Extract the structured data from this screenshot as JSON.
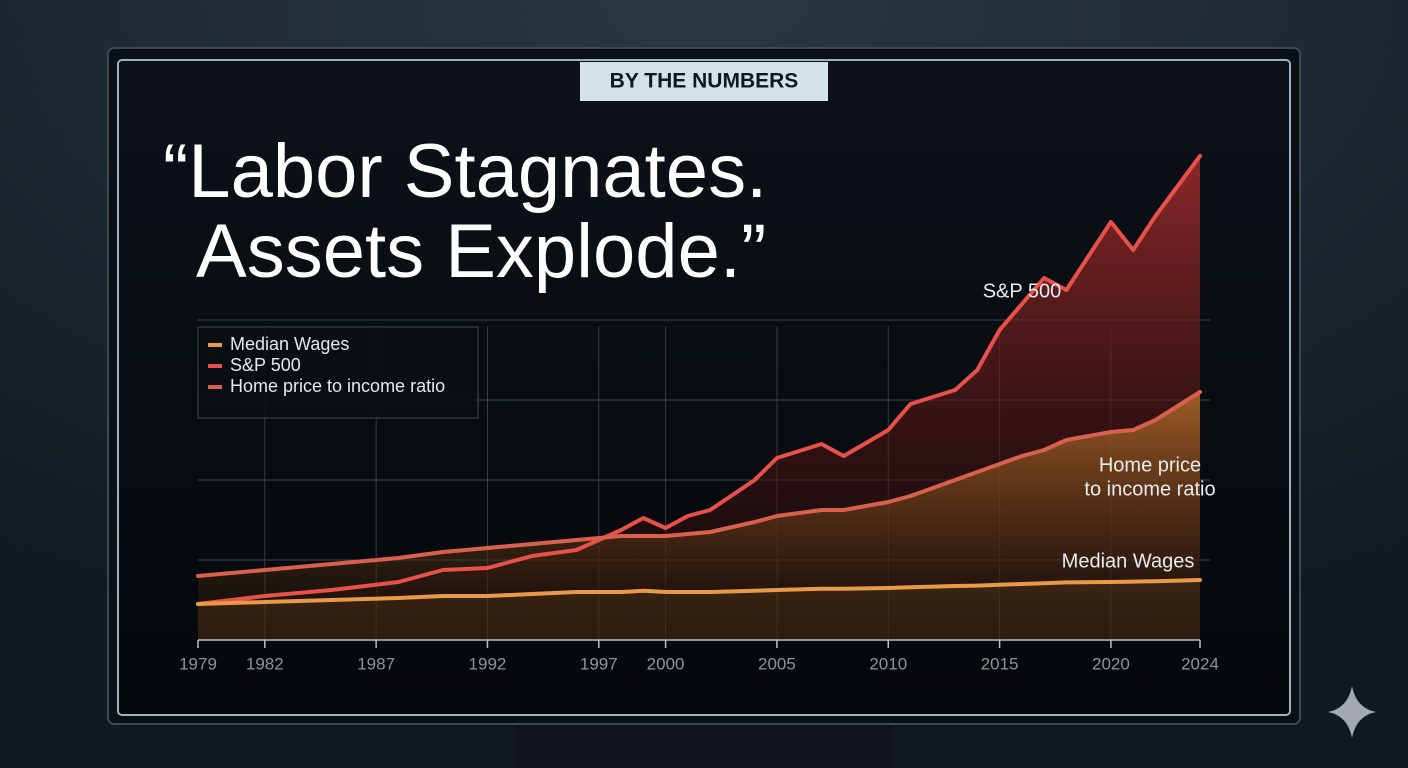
{
  "chart_data": {
    "type": "line",
    "badge": "BY THE NUMBERS",
    "title_lines": [
      "“Labor Stagnates.",
      "Assets Explode.”"
    ],
    "x": [
      1979,
      1982,
      1985,
      1988,
      1990,
      1992,
      1994,
      1996,
      1998,
      1999,
      2000,
      2001,
      2002,
      2004,
      2005,
      2007,
      2008,
      2010,
      2011,
      2013,
      2014,
      2015,
      2016,
      2017,
      2018,
      2020,
      2021,
      2022,
      2024
    ],
    "series": [
      {
        "name": "Median Wages",
        "color": "#e89a48",
        "values": [
          9,
          9.5,
          10,
          10.5,
          11,
          11,
          11.5,
          12,
          12,
          12.3,
          12,
          12,
          12,
          12.3,
          12.5,
          12.8,
          12.8,
          13,
          13.2,
          13.5,
          13.6,
          13.8,
          14,
          14.2,
          14.4,
          14.5,
          14.6,
          14.7,
          15
        ]
      },
      {
        "name": "S&P 500",
        "color": "#e8504a",
        "values": [
          9,
          11,
          12.5,
          14.5,
          17.5,
          18,
          21,
          22.5,
          27.5,
          30.5,
          28,
          31,
          32.5,
          40,
          45.5,
          49,
          46,
          52.5,
          59,
          62.5,
          67.5,
          77.5,
          84,
          90.5,
          87.5,
          104.5,
          97.5,
          106,
          121
        ]
      },
      {
        "name": "Home price to income ratio",
        "color": "#d9604c",
        "values": [
          16,
          17.5,
          19,
          20.5,
          22,
          23,
          24,
          25,
          26,
          26,
          26,
          26.5,
          27,
          29.5,
          31,
          32.5,
          32.5,
          34.5,
          36,
          40,
          42,
          44,
          46,
          47.5,
          50,
          52,
          52.5,
          55,
          62
        ]
      }
    ],
    "annotations": [
      [
        "S&P 500"
      ],
      [
        "Home price",
        "to income ratio"
      ],
      [
        "Median Wages"
      ]
    ],
    "xlim": [
      1979,
      2024
    ],
    "xticks": [
      1979,
      1982,
      1987,
      1992,
      1997,
      2000,
      2005,
      2010,
      2015,
      2020,
      2024
    ],
    "ylim": [
      0,
      125
    ],
    "grid_y": [
      20,
      40,
      60,
      80
    ],
    "grid": true,
    "legend": "upper left"
  }
}
